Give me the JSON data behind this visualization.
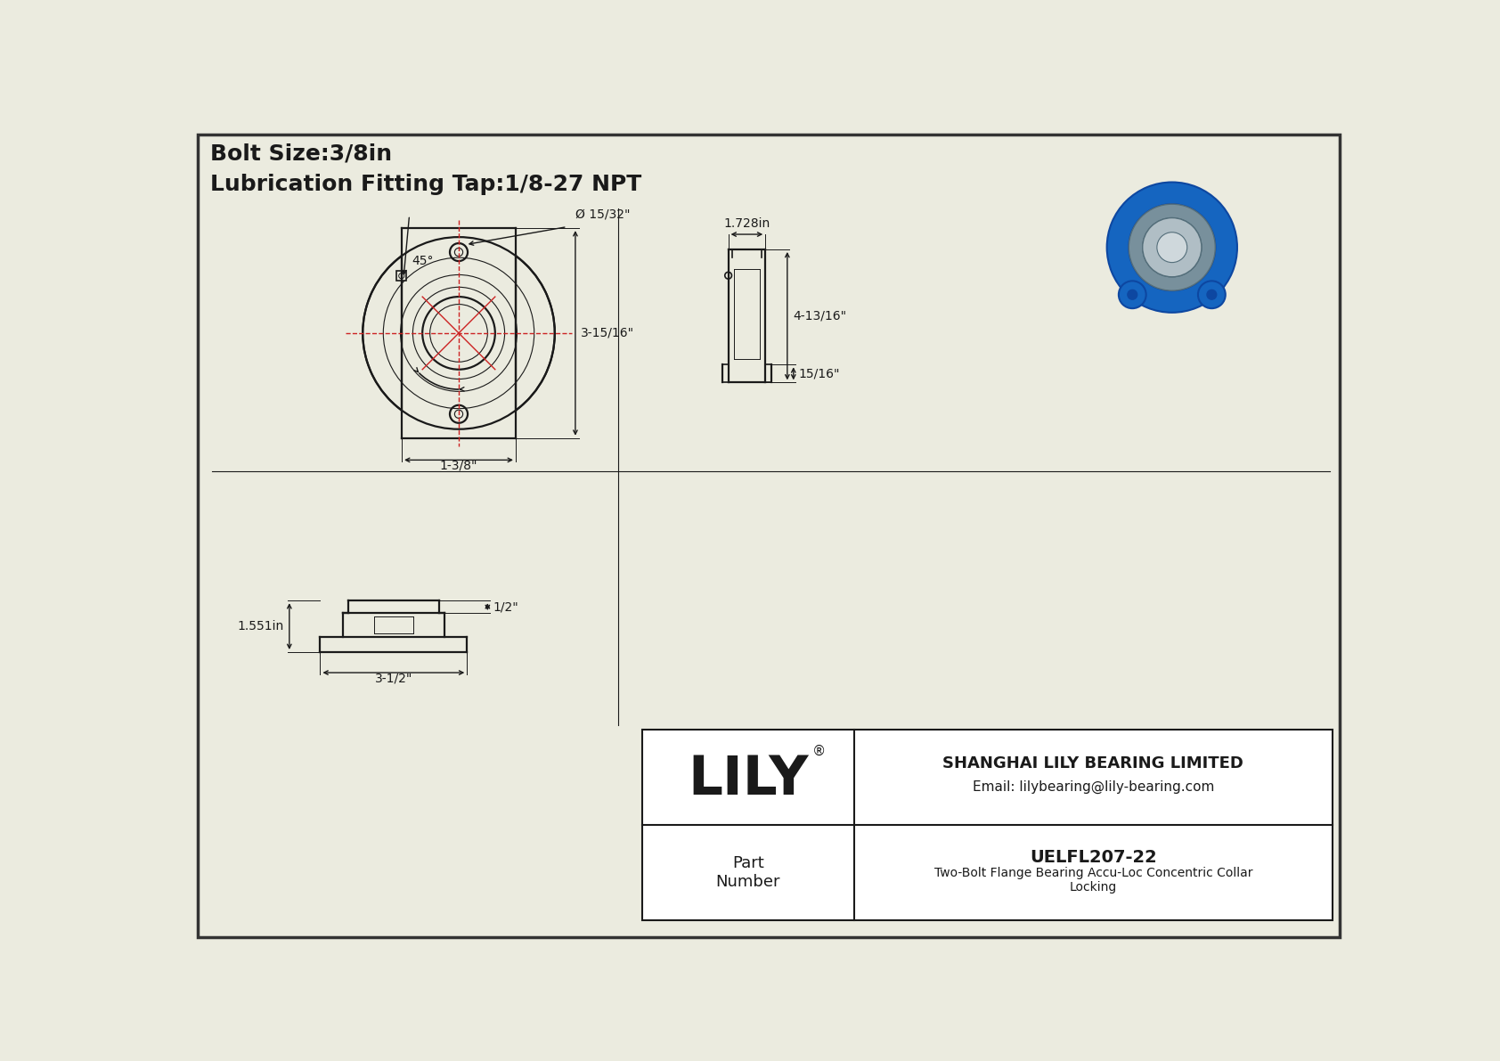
{
  "bg_color": "#ebebdf",
  "line_color": "#1a1a1a",
  "red_color": "#cc2222",
  "border_color": "#333333",
  "title_line1": "Bolt Size:3/8in",
  "title_line2": "Lubrication Fitting Tap:1/8-27 NPT",
  "title_fontsize": 18,
  "dim_fontsize": 11,
  "company_name": "SHANGHAI LILY BEARING LIMITED",
  "company_email": "Email: lilybearing@lily-bearing.com",
  "part_number_label": "Part\nNumber",
  "part_number": "UELFL207-22",
  "part_desc": "Two-Bolt Flange Bearing Accu-Loc Concentric Collar\nLocking",
  "lily_text": "LILY",
  "dim_45deg": "45°",
  "dim_bolt_hole": "Ø 15/32\"",
  "dim_width": "3-15/16\"",
  "dim_bottom": "1-3/8\"",
  "dim_side_top": "1.728in",
  "dim_side_height": "4-13/16\"",
  "dim_side_bottom": "15/16\"",
  "dim_front_height": "1/2\"",
  "dim_front_width": "3-1/2\"",
  "dim_front_left": "1.551in",
  "blue_dark": "#0d47a1",
  "blue_mid": "#1565c0",
  "blue_light": "#42a5f5",
  "steel_dark": "#546e7a",
  "steel_mid": "#78909c",
  "steel_light": "#b0bec5"
}
